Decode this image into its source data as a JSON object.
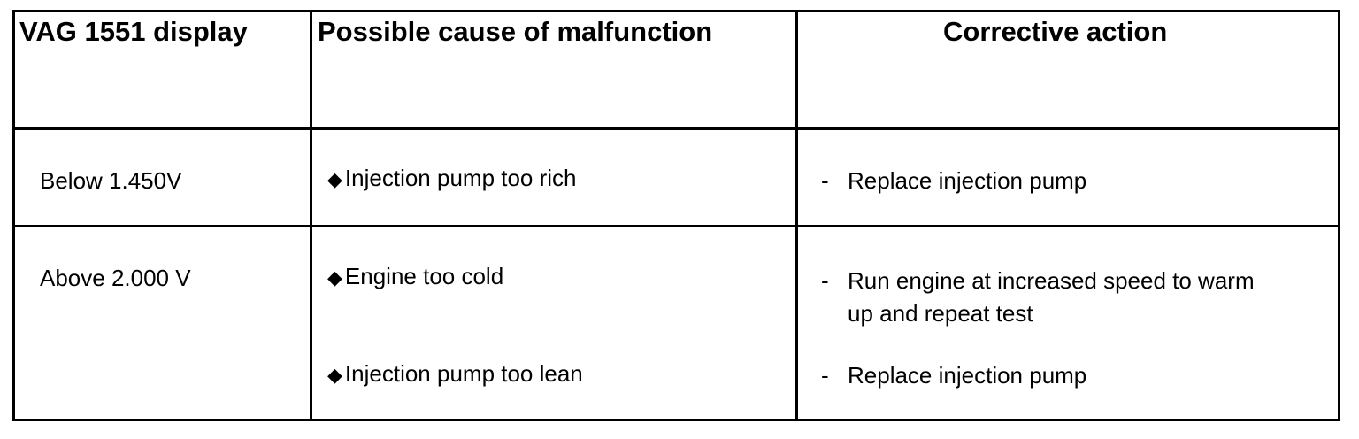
{
  "headers": {
    "display": "VAG 1551 display",
    "cause": "Possible cause of malfunction",
    "action": "Corrective action"
  },
  "rows": [
    {
      "display": "Below 1.450V",
      "causes": [
        "Injection pump too rich"
      ],
      "actions": [
        [
          "Replace injection pump"
        ]
      ]
    },
    {
      "display": "Above 2.000 V",
      "causes": [
        "Engine too cold",
        "Injection pump too lean"
      ],
      "actions": [
        [
          "Run engine at increased speed to warm",
          "up and repeat test"
        ],
        [
          "Replace injection pump"
        ]
      ]
    }
  ],
  "bullet_glyph": "◆",
  "dash_glyph": "-"
}
